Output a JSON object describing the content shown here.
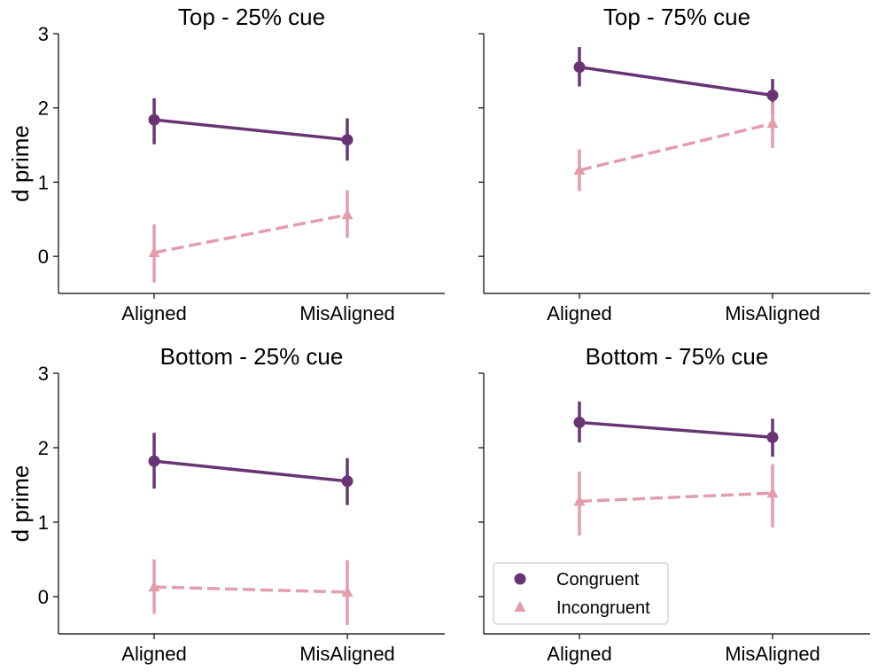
{
  "colors": {
    "congruent": "#693476",
    "incongruent": "#E39DAB"
  },
  "chart_data": [
    {
      "type": "line",
      "title": "Top - 25% cue",
      "ylabel": "d prime",
      "categories": [
        "Aligned",
        "MisAligned"
      ],
      "ylim": [
        -0.5,
        3
      ],
      "yticks": [
        "0",
        "1",
        "2",
        "3"
      ],
      "series": [
        {
          "name": "Congruent",
          "values": [
            1.84,
            1.57
          ],
          "err_low": [
            1.51,
            1.29
          ],
          "err_high": [
            2.13,
            1.86
          ]
        },
        {
          "name": "Incongruent",
          "values": [
            0.05,
            0.56
          ],
          "err_low": [
            -0.35,
            0.25
          ],
          "err_high": [
            0.43,
            0.89
          ]
        }
      ]
    },
    {
      "type": "line",
      "title": "Top - 75% cue",
      "ylabel": "",
      "categories": [
        "Aligned",
        "MisAligned"
      ],
      "ylim": [
        -0.5,
        3
      ],
      "yticks": [],
      "series": [
        {
          "name": "Congruent",
          "values": [
            2.55,
            2.17
          ],
          "err_low": [
            2.29,
            1.92
          ],
          "err_high": [
            2.82,
            2.39
          ]
        },
        {
          "name": "Incongruent",
          "values": [
            1.16,
            1.79
          ],
          "err_low": [
            0.88,
            1.46
          ],
          "err_high": [
            1.44,
            2.08
          ]
        }
      ]
    },
    {
      "type": "line",
      "title": "Bottom - 25% cue",
      "ylabel": "d prime",
      "categories": [
        "Aligned",
        "MisAligned"
      ],
      "ylim": [
        -0.5,
        3
      ],
      "yticks": [
        "0",
        "1",
        "2",
        "3"
      ],
      "series": [
        {
          "name": "Congruent",
          "values": [
            1.82,
            1.55
          ],
          "err_low": [
            1.45,
            1.23
          ],
          "err_high": [
            2.2,
            1.86
          ]
        },
        {
          "name": "Incongruent",
          "values": [
            0.13,
            0.06
          ],
          "err_low": [
            -0.23,
            -0.38
          ],
          "err_high": [
            0.5,
            0.49
          ]
        }
      ]
    },
    {
      "type": "line",
      "title": "Bottom - 75% cue",
      "ylabel": "",
      "categories": [
        "Aligned",
        "MisAligned"
      ],
      "ylim": [
        -0.5,
        3
      ],
      "yticks": [],
      "legend": {
        "placement": "lower-left",
        "entries": [
          "Congruent",
          "Incongruent"
        ]
      },
      "series": [
        {
          "name": "Congruent",
          "values": [
            2.34,
            2.14
          ],
          "err_low": [
            2.07,
            1.88
          ],
          "err_high": [
            2.62,
            2.39
          ]
        },
        {
          "name": "Incongruent",
          "values": [
            1.28,
            1.39
          ],
          "err_low": [
            0.82,
            0.93
          ],
          "err_high": [
            1.68,
            1.78
          ]
        }
      ]
    }
  ]
}
